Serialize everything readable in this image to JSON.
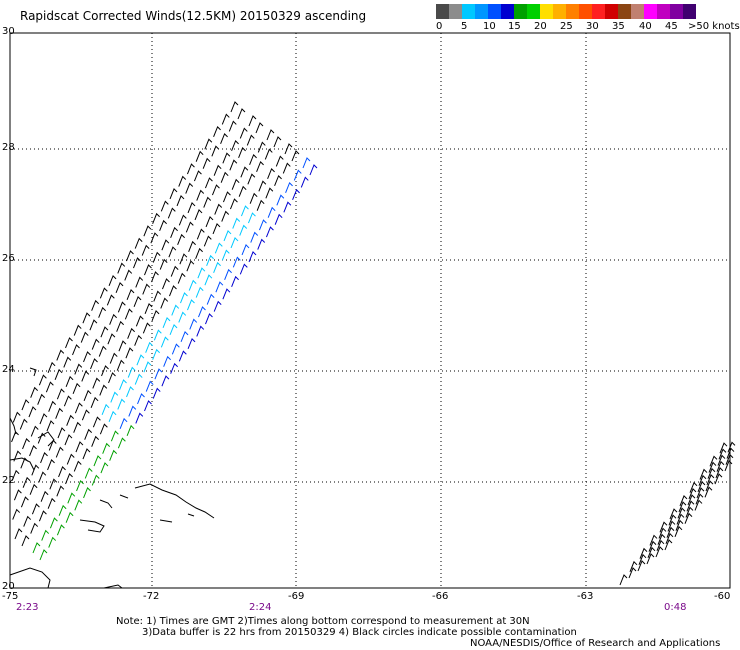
{
  "title": "Rapidscat Corrected Winds(12.5KM) 20150329 ascending",
  "legend": {
    "colors": [
      "#4a4a4a",
      "#8c8c8c",
      "#00c8ff",
      "#0096ff",
      "#0050ff",
      "#0000d0",
      "#00a000",
      "#00d000",
      "#ffdf00",
      "#ffb000",
      "#ff8000",
      "#ff5000",
      "#ff2020",
      "#d00000",
      "#8b4513",
      "#c08070",
      "#ff00ff",
      "#c000c0",
      "#8000a0",
      "#400070"
    ],
    "labels": [
      "0",
      "5",
      "10",
      "15",
      "20",
      "25",
      "30",
      "35",
      "40",
      "45",
      ">50 knots"
    ]
  },
  "axes": {
    "lat_labels": [
      "30",
      "28",
      "26",
      "24",
      "22",
      "20"
    ],
    "lon_labels": [
      "-75",
      "-72",
      "-69",
      "-66",
      "-63",
      "-60"
    ]
  },
  "times": [
    "2:23",
    "2:24",
    "0:48"
  ],
  "notes": {
    "line1": "Note: 1) Times are GMT 2)Times along bottom correspond to measurement at 30N",
    "line2": "3)Data buffer is 22 hrs from 20150329 4) Black circles indicate possible contamination",
    "credit": "NOAA/NESDIS/Office of Research and Applications"
  }
}
